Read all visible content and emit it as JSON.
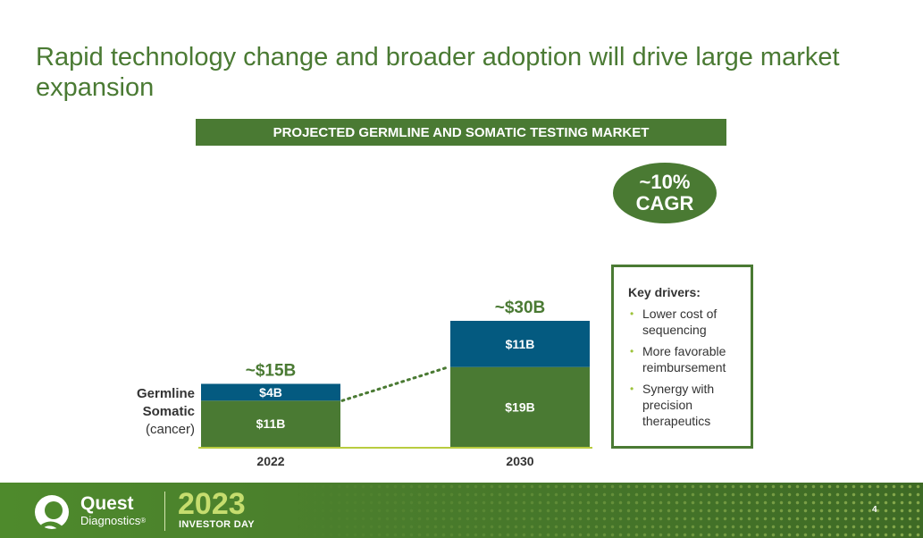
{
  "slide": {
    "title": "Rapid technology change and broader adoption will drive large market expansion",
    "page_number": "4"
  },
  "chart_data": {
    "type": "bar",
    "stacked": true,
    "title": "PROJECTED GERMLINE AND SOMATIC TESTING MARKET",
    "categories": [
      "2022",
      "2030"
    ],
    "series": [
      {
        "name": "Somatic",
        "sublabel": "(cancer)",
        "values": [
          11,
          19
        ],
        "labels": [
          "$11B",
          "$19B"
        ],
        "color": "#4a7a33"
      },
      {
        "name": "Germline",
        "values": [
          4,
          11
        ],
        "labels": [
          "$4B",
          "$11B"
        ],
        "color": "#045a80"
      }
    ],
    "totals": [
      15,
      30
    ],
    "total_labels": [
      "~$15B",
      "~$30B"
    ],
    "ylim": [
      0,
      30
    ],
    "connector": "dotted",
    "grid": false,
    "axis_color": "#b9cc3f"
  },
  "callout": {
    "cagr_value": "~10%",
    "cagr_label": "CAGR"
  },
  "drivers": {
    "title": "Key drivers:",
    "items": [
      "Lower cost of sequencing",
      "More favorable reimbursement",
      "Synergy with precision therapeutics"
    ]
  },
  "footer": {
    "brand": "Quest",
    "brand_sub": "Diagnostics",
    "brand_mark": "®",
    "year": "2023",
    "event": "INVESTOR DAY"
  }
}
